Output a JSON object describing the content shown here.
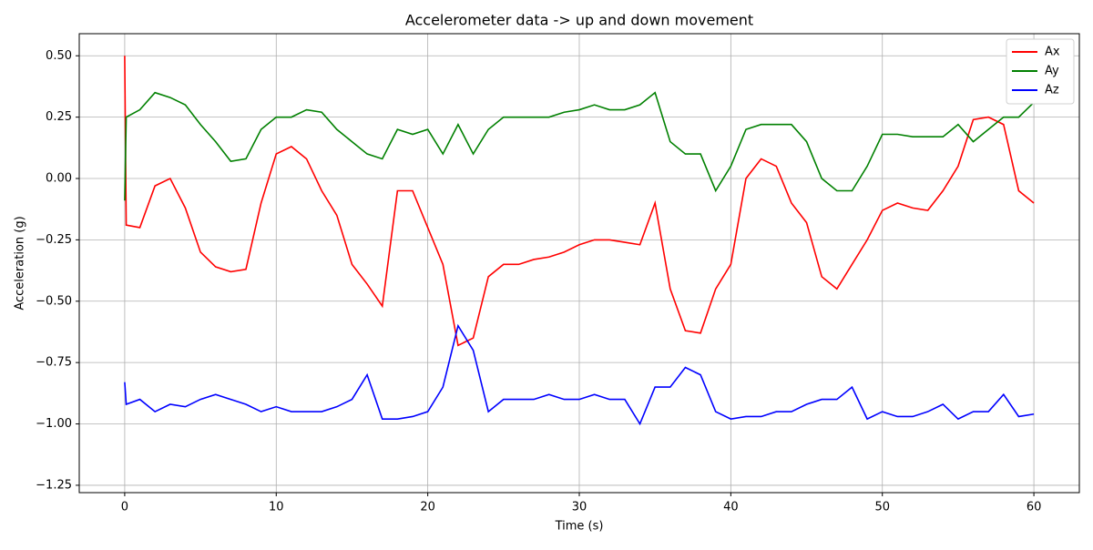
{
  "chart_data": {
    "type": "line",
    "title": "Accelerometer data -> up and down movement",
    "xlabel": "Time (s)",
    "ylabel": "Acceleration (g)",
    "x": [
      0,
      0.1,
      1,
      2,
      3,
      4,
      5,
      6,
      7,
      8,
      9,
      10,
      11,
      12,
      13,
      14,
      15,
      16,
      17,
      18,
      19,
      20,
      21,
      22,
      23,
      24,
      25,
      26,
      27,
      28,
      29,
      30,
      31,
      32,
      33,
      34,
      35,
      36,
      37,
      38,
      39,
      40,
      41,
      42,
      43,
      44,
      45,
      46,
      47,
      48,
      49,
      50,
      51,
      52,
      53,
      54,
      55,
      56,
      57,
      58,
      59,
      60
    ],
    "series": [
      {
        "name": "Ax",
        "color": "#ff0000",
        "values": [
          0.5,
          -0.19,
          -0.2,
          -0.03,
          0.0,
          -0.12,
          -0.3,
          -0.36,
          -0.38,
          -0.37,
          -0.1,
          0.1,
          0.13,
          0.08,
          -0.05,
          -0.15,
          -0.35,
          -0.43,
          -0.52,
          -0.05,
          -0.05,
          -0.2,
          -0.35,
          -0.68,
          -0.65,
          -0.4,
          -0.35,
          -0.35,
          -0.33,
          -0.32,
          -0.3,
          -0.27,
          -0.25,
          -0.25,
          -0.26,
          -0.27,
          -0.1,
          -0.45,
          -0.62,
          -0.63,
          -0.45,
          -0.35,
          0.0,
          0.08,
          0.05,
          -0.1,
          -0.18,
          -0.4,
          -0.45,
          -0.35,
          -0.25,
          -0.13,
          -0.1,
          -0.12,
          -0.13,
          -0.05,
          0.05,
          0.24,
          0.25,
          0.22,
          -0.05,
          -0.1
        ]
      },
      {
        "name": "Ay",
        "color": "#008000",
        "values": [
          -0.09,
          0.25,
          0.28,
          0.35,
          0.33,
          0.3,
          0.22,
          0.15,
          0.07,
          0.08,
          0.2,
          0.25,
          0.25,
          0.28,
          0.27,
          0.2,
          0.15,
          0.1,
          0.08,
          0.2,
          0.18,
          0.2,
          0.1,
          0.22,
          0.1,
          0.2,
          0.25,
          0.25,
          0.25,
          0.25,
          0.27,
          0.28,
          0.3,
          0.28,
          0.28,
          0.3,
          0.35,
          0.15,
          0.1,
          0.1,
          -0.05,
          0.05,
          0.2,
          0.22,
          0.22,
          0.22,
          0.15,
          0.0,
          -0.05,
          -0.05,
          0.05,
          0.18,
          0.18,
          0.17,
          0.17,
          0.17,
          0.22,
          0.15,
          0.2,
          0.25,
          0.25,
          0.31
        ]
      },
      {
        "name": "Az",
        "color": "#0000ff",
        "values": [
          -0.83,
          -0.92,
          -0.9,
          -0.95,
          -0.92,
          -0.93,
          -0.9,
          -0.88,
          -0.9,
          -0.92,
          -0.95,
          -0.93,
          -0.95,
          -0.95,
          -0.95,
          -0.93,
          -0.9,
          -0.8,
          -0.98,
          -0.98,
          -0.97,
          -0.95,
          -0.85,
          -0.6,
          -0.7,
          -0.95,
          -0.9,
          -0.9,
          -0.9,
          -0.88,
          -0.9,
          -0.9,
          -0.88,
          -0.9,
          -0.9,
          -1.0,
          -0.85,
          -0.85,
          -0.77,
          -0.8,
          -0.95,
          -0.98,
          -0.97,
          -0.97,
          -0.95,
          -0.95,
          -0.92,
          -0.9,
          -0.9,
          -0.85,
          -0.98,
          -0.95,
          -0.97,
          -0.97,
          -0.95,
          -0.92,
          -0.98,
          -0.95,
          -0.95,
          -0.88,
          -0.97,
          -0.96
        ]
      }
    ],
    "xlim": [
      -3,
      63
    ],
    "ylim": [
      -1.28,
      0.59
    ],
    "xticks": [
      0,
      10,
      20,
      30,
      40,
      50,
      60
    ],
    "yticks": [
      {
        "value": -1.25,
        "label": "−1.25"
      },
      {
        "value": -1.0,
        "label": "−1.00"
      },
      {
        "value": -0.75,
        "label": "−0.75"
      },
      {
        "value": -0.5,
        "label": "−0.50"
      },
      {
        "value": -0.25,
        "label": "−0.25"
      },
      {
        "value": 0.0,
        "label": "0.00"
      },
      {
        "value": 0.25,
        "label": "0.25"
      },
      {
        "value": 0.5,
        "label": "0.50"
      }
    ],
    "grid": true,
    "legend": "upper right"
  }
}
